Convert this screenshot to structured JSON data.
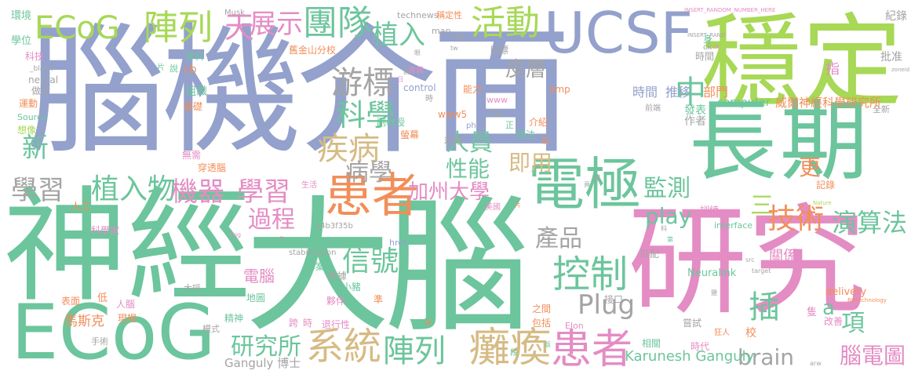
{
  "palette": {
    "blue": "#93a1cc",
    "green": "#6cc59c",
    "lime": "#a7d856",
    "pink": "#e48cc4",
    "orange": "#f28e59",
    "tan": "#d6bb84",
    "gray": "#a4a4a4"
  },
  "words": [
    {
      "id": "w1",
      "text": "腦機介面",
      "color": "blue"
    },
    {
      "id": "w2",
      "text": "穩定",
      "color": "lime"
    },
    {
      "id": "w3",
      "text": "長期",
      "color": "green"
    },
    {
      "id": "w4",
      "text": "神經",
      "color": "green"
    },
    {
      "id": "w5",
      "text": "大腦",
      "color": "green"
    },
    {
      "id": "w6",
      "text": "研究",
      "color": "pink"
    },
    {
      "id": "w7",
      "text": "ECoG",
      "color": "green"
    },
    {
      "id": "w8",
      "text": "ECoG",
      "color": "lime"
    },
    {
      "id": "w9",
      "text": "UCSF",
      "color": "blue"
    },
    {
      "id": "w10",
      "text": "陣列",
      "color": "lime"
    },
    {
      "id": "w11",
      "text": "展示",
      "color": "pink"
    },
    {
      "id": "w12",
      "text": "團隊",
      "color": "green"
    },
    {
      "id": "w13",
      "text": "活動",
      "color": "lime"
    },
    {
      "id": "w14",
      "text": "植入",
      "color": "green"
    },
    {
      "id": "w15",
      "text": "天",
      "color": "pink"
    },
    {
      "id": "w16",
      "text": "游標",
      "color": "gray"
    },
    {
      "id": "w17",
      "text": "皮層",
      "color": "gray"
    },
    {
      "id": "w18",
      "text": "中",
      "color": "green"
    },
    {
      "id": "w19",
      "text": "電極",
      "color": "green"
    },
    {
      "id": "w20",
      "text": "患者",
      "color": "orange"
    },
    {
      "id": "w21",
      "text": "患者",
      "color": "pink"
    },
    {
      "id": "w22",
      "text": "科學",
      "color": "green"
    },
    {
      "id": "w23",
      "text": "疾病",
      "color": "tan"
    },
    {
      "id": "w24",
      "text": "病學",
      "color": "gray"
    },
    {
      "id": "w25",
      "text": "新",
      "color": "green"
    },
    {
      "id": "w26",
      "text": "學習",
      "color": "gray"
    },
    {
      "id": "w27",
      "text": "學習",
      "color": "pink"
    },
    {
      "id": "w28",
      "text": "植入物",
      "color": "green"
    },
    {
      "id": "w29",
      "text": "機器",
      "color": "pink"
    },
    {
      "id": "w30",
      "text": "過程",
      "color": "pink"
    },
    {
      "id": "w31",
      "text": "人員",
      "color": "green"
    },
    {
      "id": "w32",
      "text": "性能",
      "color": "green"
    },
    {
      "id": "w33",
      "text": "即用",
      "color": "tan"
    },
    {
      "id": "w34",
      "text": "加州大學",
      "color": "pink"
    },
    {
      "id": "w35",
      "text": "play",
      "color": "green"
    },
    {
      "id": "w36",
      "text": "監測",
      "color": "green"
    },
    {
      "id": "w37",
      "text": "三",
      "color": "lime"
    },
    {
      "id": "w38",
      "text": "技術",
      "color": "orange"
    },
    {
      "id": "w39",
      "text": "演算法",
      "color": "green"
    },
    {
      "id": "w40",
      "text": "更",
      "color": "orange"
    },
    {
      "id": "w41",
      "text": "產品",
      "color": "gray"
    },
    {
      "id": "w42",
      "text": "信號",
      "color": "green"
    },
    {
      "id": "w43",
      "text": "控制",
      "color": "green"
    },
    {
      "id": "w44",
      "text": "Plug",
      "color": "gray"
    },
    {
      "id": "w45",
      "text": "插",
      "color": "green"
    },
    {
      "id": "w46",
      "text": "a",
      "color": "green"
    },
    {
      "id": "w47",
      "text": "項",
      "color": "green"
    },
    {
      "id": "w48",
      "text": "研究所",
      "color": "green"
    },
    {
      "id": "w49",
      "text": "系統",
      "color": "tan"
    },
    {
      "id": "w50",
      "text": "陣列",
      "color": "green"
    },
    {
      "id": "w51",
      "text": "癱瘓",
      "color": "tan"
    },
    {
      "id": "w52",
      "text": "brain",
      "color": "gray"
    },
    {
      "id": "w53",
      "text": "腦電圖",
      "color": "pink"
    },
    {
      "id": "w54",
      "text": "電腦",
      "color": "pink"
    },
    {
      "id": "w55",
      "text": "關係",
      "color": "pink"
    },
    {
      "id": "w56",
      "text": "Neuralink",
      "color": "green"
    },
    {
      "id": "w57",
      "text": "Karunesh Ganguly",
      "color": "green"
    },
    {
      "id": "w58",
      "text": "Ganguly 博士",
      "color": "gray"
    },
    {
      "id": "w59",
      "text": "馬斯克",
      "color": "orange"
    },
    {
      "id": "w60",
      "text": "時間",
      "color": "blue"
    },
    {
      "id": "w61",
      "text": "推移",
      "color": "blue"
    },
    {
      "id": "w62",
      "text": "部門",
      "color": "orange"
    },
    {
      "id": "w63",
      "text": "威爾神經科學研究所",
      "color": "orange"
    },
    {
      "id": "w64",
      "text": "computer",
      "color": "green"
    },
    {
      "id": "w65",
      "text": "發表",
      "color": "green"
    },
    {
      "id": "w66",
      "text": "指",
      "color": "pink"
    },
    {
      "id": "w67",
      "text": "紀錄",
      "color": "gray"
    },
    {
      "id": "w68",
      "text": "批准",
      "color": "gray"
    },
    {
      "id": "w69",
      "text": "作者",
      "color": "gray"
    },
    {
      "id": "w70",
      "text": "全新",
      "color": "gray"
    },
    {
      "id": "w71",
      "text": "technews",
      "color": "gray"
    },
    {
      "id": "w72",
      "text": "稱定性",
      "color": "orange"
    },
    {
      "id": "w73",
      "text": "Musk",
      "color": "gray"
    },
    {
      "id": "w74",
      "text": "INSERT_RANDOM_NUMBER_HERE",
      "color": "pink"
    },
    {
      "id": "w75",
      "text": "INSERT_RAND",
      "color": "gray"
    },
    {
      "id": "w76",
      "text": "環境",
      "color": "green"
    },
    {
      "id": "w77",
      "text": "學位",
      "color": "green"
    },
    {
      "id": "w78",
      "text": "科技",
      "color": "pink"
    },
    {
      "id": "w79",
      "text": "_blank",
      "color": "gray"
    },
    {
      "id": "w80",
      "text": "neural",
      "color": "gray"
    },
    {
      "id": "w81",
      "text": "做法",
      "color": "gray"
    },
    {
      "id": "w82",
      "text": "運動",
      "color": "orange"
    },
    {
      "id": "w83",
      "text": "Source",
      "color": "green"
    },
    {
      "id": "w84",
      "text": "想像",
      "color": "lime"
    },
    {
      "id": "w85",
      "text": "學科",
      "color": "green"
    },
    {
      "id": "w86",
      "text": "cb",
      "color": "orange"
    },
    {
      "id": "w87",
      "text": "組織",
      "color": "green"
    },
    {
      "id": "w88",
      "text": "基礎",
      "color": "orange"
    },
    {
      "id": "w89",
      "text": "無需",
      "color": "pink"
    },
    {
      "id": "w90",
      "text": "穿透腦",
      "color": "orange"
    },
    {
      "id": "w91",
      "text": "人工",
      "color": "orange"
    },
    {
      "id": "w92",
      "text": "科學家",
      "color": "pink"
    },
    {
      "id": "w93",
      "text": "生活",
      "color": "pink"
    },
    {
      "id": "w94",
      "text": "專案",
      "color": "green"
    },
    {
      "id": "w95",
      "text": "數據",
      "color": "gray"
    },
    {
      "id": "w96",
      "text": "表面",
      "color": "orange"
    },
    {
      "id": "w97",
      "text": "低",
      "color": "orange"
    },
    {
      "id": "w98",
      "text": "人腦",
      "color": "pink"
    },
    {
      "id": "w99",
      "text": "大呼",
      "color": "gray"
    },
    {
      "id": "w100",
      "text": "地圖",
      "color": "green"
    },
    {
      "id": "w101",
      "text": "夥伴",
      "color": "pink"
    },
    {
      "id": "w102",
      "text": "小豬",
      "color": "green"
    },
    {
      "id": "w103",
      "text": "現場",
      "color": "orange"
    },
    {
      "id": "w104",
      "text": "精神",
      "color": "green"
    },
    {
      "id": "w105",
      "text": "跨",
      "color": "pink"
    },
    {
      "id": "w106",
      "text": "時",
      "color": "pink"
    },
    {
      "id": "w107",
      "text": "退行性",
      "color": "pink"
    },
    {
      "id": "w108",
      "text": "手術",
      "color": "gray"
    },
    {
      "id": "w109",
      "text": "模式",
      "color": "gray"
    },
    {
      "id": "w110",
      "text": "準",
      "color": "orange"
    },
    {
      "id": "w111",
      "text": "包括",
      "color": "orange"
    },
    {
      "id": "w112",
      "text": "之間",
      "color": "orange"
    },
    {
      "id": "w113",
      "text": "Elon",
      "color": "pink"
    },
    {
      "id": "w114",
      "text": "相關",
      "color": "green"
    },
    {
      "id": "w115",
      "text": "時代",
      "color": "pink"
    },
    {
      "id": "w116",
      "text": "嘗試",
      "color": "gray"
    },
    {
      "id": "w117",
      "text": "改善",
      "color": "pink"
    },
    {
      "id": "w118",
      "text": "delivery",
      "color": "orange"
    },
    {
      "id": "w119",
      "text": "隻",
      "color": "pink"
    },
    {
      "id": "w120",
      "text": "校",
      "color": "orange"
    },
    {
      "id": "w121",
      "text": "狂人",
      "color": "orange"
    },
    {
      "id": "w122",
      "text": "Biotechnology",
      "color": "orange"
    },
    {
      "id": "w123",
      "text": "匹配",
      "color": "gray"
    },
    {
      "id": "w124",
      "text": "interface",
      "color": "green"
    },
    {
      "id": "w125",
      "text": "訓練",
      "color": "pink"
    },
    {
      "id": "w126",
      "text": "記錄",
      "color": "orange"
    },
    {
      "id": "w127",
      "text": "接口",
      "color": "gray"
    },
    {
      "id": "w128",
      "text": "舊金山分校",
      "color": "orange"
    },
    {
      "id": "w129",
      "text": "map",
      "color": "gray"
    },
    {
      "id": "w130",
      "text": "control",
      "color": "blue"
    },
    {
      "id": "w131",
      "text": "目標",
      "color": "gray"
    },
    {
      "id": "w132",
      "text": "能力",
      "color": "orange"
    },
    {
      "id": "w133",
      "text": "amp",
      "color": "orange"
    },
    {
      "id": "w134",
      "text": "www5",
      "color": "orange"
    },
    {
      "id": "w135",
      "text": "www",
      "color": "pink"
    },
    {
      "id": "w136",
      "text": "php",
      "color": "blue"
    },
    {
      "id": "w137",
      "text": "副教授",
      "color": "green"
    },
    {
      "id": "w138",
      "text": "螢幕",
      "color": "orange"
    },
    {
      "id": "w139",
      "text": "利用",
      "color": "gray"
    },
    {
      "id": "w140",
      "text": "介紹",
      "color": "orange"
    },
    {
      "id": "w141",
      "text": "關注",
      "color": "green"
    },
    {
      "id": "w142",
      "text": "tw",
      "color": "gray"
    },
    {
      "id": "w143",
      "text": "href",
      "color": "blue"
    },
    {
      "id": "w144",
      "text": "stabilization",
      "color": "gray"
    },
    {
      "id": "w145",
      "text": "a4b3f35b",
      "color": "gray"
    },
    {
      "id": "w146",
      "text": "美國",
      "color": "pink"
    },
    {
      "id": "w147",
      "text": "目",
      "color": "gray"
    },
    {
      "id": "w148",
      "text": "前端",
      "color": "gray"
    },
    {
      "id": "w149",
      "text": "時間",
      "color": "gray"
    },
    {
      "id": "w150",
      "text": "zoneid",
      "color": "gray"
    },
    {
      "id": "w151",
      "text": "Nature",
      "color": "lime"
    },
    {
      "id": "w152",
      "text": "進展",
      "color": "pink"
    },
    {
      "id": "w153",
      "text": "正",
      "color": "green"
    },
    {
      "id": "w154",
      "text": "身",
      "color": "green"
    },
    {
      "id": "w155",
      "text": "ck",
      "color": "gray"
    },
    {
      "id": "w156",
      "text": "時",
      "color": "gray"
    },
    {
      "id": "w157",
      "text": "說",
      "color": "green"
    },
    {
      "id": "w158",
      "text": "片",
      "color": "green"
    },
    {
      "id": "w159",
      "text": "段",
      "color": "green"
    },
    {
      "id": "w160",
      "text": "前",
      "color": "orange"
    },
    {
      "id": "w161",
      "text": "大開",
      "color": "gray"
    },
    {
      "id": "w162",
      "text": "tw",
      "color": "gray"
    },
    {
      "id": "w163",
      "text": "創",
      "color": "gray"
    },
    {
      "id": "w164",
      "text": "日",
      "color": "pink"
    },
    {
      "id": "w165",
      "text": "眼",
      "color": "gray"
    },
    {
      "id": "w166",
      "text": "科",
      "color": "gray"
    },
    {
      "id": "w167",
      "text": "片",
      "color": "orange"
    },
    {
      "id": "w168",
      "text": "第",
      "color": "green"
    },
    {
      "id": "w169",
      "text": "target",
      "color": "gray"
    },
    {
      "id": "w170",
      "text": "src",
      "color": "gray"
    },
    {
      "id": "w171",
      "text": "n",
      "color": "gray"
    },
    {
      "id": "w172",
      "text": "img",
      "color": "pink"
    },
    {
      "id": "w173",
      "text": "arw",
      "color": "gray"
    },
    {
      "id": "w174",
      "text": "ck",
      "color": "pink"
    },
    {
      "id": "w175",
      "text": "頁",
      "color": "gray"
    },
    {
      "id": "w176",
      "text": "影",
      "color": "orange"
    },
    {
      "id": "w177",
      "text": "鹽",
      "color": "gray"
    },
    {
      "id": "w178",
      "text": "版",
      "color": "green"
    }
  ]
}
